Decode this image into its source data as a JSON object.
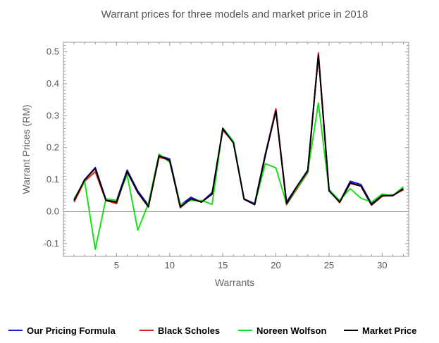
{
  "chart_data": {
    "type": "line",
    "title": "Warrant prices for three models and market price in 2018",
    "xlabel": "Warrants",
    "ylabel": "Warrant Prices (RM)",
    "xlim": [
      0,
      32.5
    ],
    "ylim": [
      -0.14,
      0.53
    ],
    "xticks": [
      5,
      10,
      15,
      20,
      25,
      30
    ],
    "yticks": [
      -0.1,
      0.0,
      0.1,
      0.2,
      0.3,
      0.4,
      0.5
    ],
    "ytick_labels": [
      "-0.1",
      "0.0",
      "0.1",
      "0.2",
      "0.3",
      "0.4",
      "0.5"
    ],
    "x": [
      1,
      2,
      3,
      4,
      5,
      6,
      7,
      8,
      9,
      10,
      11,
      12,
      13,
      14,
      15,
      16,
      17,
      18,
      19,
      20,
      21,
      22,
      23,
      24,
      25,
      26,
      27,
      28,
      29,
      30,
      31,
      32
    ],
    "series": [
      {
        "name": "Our Pricing Formula",
        "color": "#1a1adb",
        "values": [
          0.035,
          0.1,
          0.138,
          0.038,
          0.035,
          0.13,
          0.065,
          0.02,
          0.175,
          0.165,
          0.02,
          0.045,
          0.03,
          0.06,
          0.255,
          0.22,
          0.04,
          0.025,
          0.18,
          0.32,
          0.03,
          0.08,
          0.13,
          0.49,
          0.07,
          0.03,
          0.095,
          0.085,
          0.025,
          0.05,
          0.05,
          0.07
        ]
      },
      {
        "name": "Black Scholes",
        "color": "#e02020",
        "values": [
          0.03,
          0.095,
          0.125,
          0.035,
          0.025,
          0.125,
          0.06,
          0.015,
          0.17,
          0.162,
          0.012,
          0.04,
          0.03,
          0.055,
          0.255,
          0.218,
          0.038,
          0.022,
          0.175,
          0.322,
          0.022,
          0.072,
          0.122,
          0.497,
          0.068,
          0.028,
          0.088,
          0.08,
          0.02,
          0.048,
          0.052,
          0.068
        ]
      },
      {
        "name": "Noreen Wolfson",
        "color": "#19e019",
        "values": [
          0.04,
          0.095,
          -0.118,
          0.04,
          0.035,
          0.115,
          -0.058,
          0.025,
          0.18,
          0.155,
          0.022,
          0.035,
          0.035,
          0.023,
          0.262,
          0.22,
          0.04,
          0.022,
          0.15,
          0.137,
          0.025,
          0.075,
          0.125,
          0.34,
          0.068,
          0.035,
          0.072,
          0.042,
          0.03,
          0.055,
          0.05,
          0.078
        ]
      },
      {
        "name": "Market Price",
        "color": "#000000",
        "values": [
          0.035,
          0.1,
          0.135,
          0.035,
          0.03,
          0.125,
          0.06,
          0.015,
          0.175,
          0.16,
          0.015,
          0.04,
          0.03,
          0.055,
          0.26,
          0.215,
          0.04,
          0.022,
          0.175,
          0.315,
          0.025,
          0.08,
          0.128,
          0.49,
          0.065,
          0.03,
          0.09,
          0.08,
          0.022,
          0.05,
          0.05,
          0.072
        ]
      }
    ],
    "legend_position": "bottom"
  }
}
